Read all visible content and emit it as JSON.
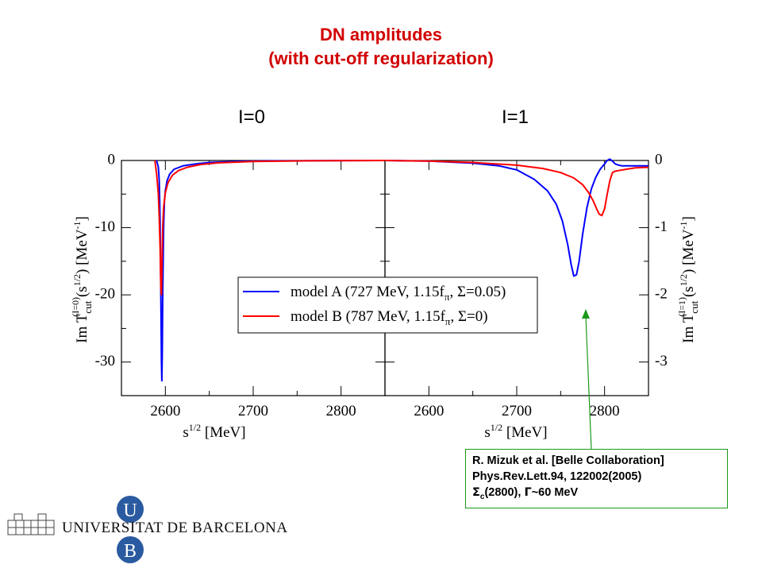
{
  "page": {
    "title_line1": "DN amplitudes",
    "title_line2": "(with cut-off regularization)",
    "label_left": "I=0",
    "label_right": "I=1"
  },
  "chart_data": [
    {
      "type": "line",
      "panel": "left",
      "xlabel": "s^1/2 [MeV]",
      "ylabel": "Im T_cut^(I=0)(s^1/2) [MeV^-1]",
      "xlim": [
        2550,
        2850
      ],
      "ylim": [
        -35,
        0
      ],
      "x_ticks": [
        2600,
        2700,
        2800
      ],
      "y_ticks": [
        0,
        -10,
        -20,
        -30
      ],
      "y_tick_labels": [
        "0",
        "-10",
        "-20",
        "-30"
      ],
      "series": [
        {
          "name": "model A (727 MeV, 1.15f_π, Σ=0.05)",
          "color": "#0000ff",
          "x": [
            2590,
            2592,
            2593,
            2594,
            2595,
            2595.5,
            2596,
            2596.5,
            2597,
            2598,
            2599,
            2600,
            2602,
            2605,
            2610,
            2620,
            2635,
            2650,
            2680,
            2720,
            2780,
            2850
          ],
          "y": [
            0,
            -1.0,
            -3.0,
            -9.0,
            -22.0,
            -30.0,
            -32.8,
            -28.0,
            -20.0,
            -10.0,
            -6.0,
            -4.5,
            -3.0,
            -2.0,
            -1.3,
            -0.8,
            -0.5,
            -0.3,
            -0.15,
            -0.06,
            -0.02,
            0
          ]
        },
        {
          "name": "model B (787 MeV, 1.15f_π, Σ=0)",
          "color": "#ff0000",
          "x": [
            2588,
            2590,
            2592,
            2593,
            2594,
            2594.8,
            2595.5,
            2596.2,
            2597,
            2598,
            2600,
            2603,
            2608,
            2615,
            2625,
            2640,
            2660,
            2700,
            2760,
            2850
          ],
          "y": [
            0,
            -2.0,
            -5.0,
            -8.5,
            -13.0,
            -19.0,
            -20.0,
            -15.0,
            -10.0,
            -7.0,
            -4.8,
            -3.3,
            -2.2,
            -1.5,
            -1.0,
            -0.6,
            -0.35,
            -0.15,
            -0.05,
            0
          ]
        }
      ]
    },
    {
      "type": "line",
      "panel": "right",
      "xlabel": "s^1/2 [MeV]",
      "ylabel": "Im T_cut^(I=1)(s^1/2) [MeV^-1]",
      "xlim": [
        2550,
        2850
      ],
      "ylim": [
        -3.5,
        0
      ],
      "x_ticks": [
        2600,
        2700,
        2800
      ],
      "y_ticks": [
        0,
        -1,
        -2,
        -3
      ],
      "y_tick_labels": [
        "0",
        "-1",
        "-2",
        "-3"
      ],
      "series": [
        {
          "name": "model A (727 MeV, 1.15f_π, Σ=0.05)",
          "color": "#0000ff",
          "x": [
            2550,
            2600,
            2650,
            2680,
            2700,
            2720,
            2735,
            2745,
            2752,
            2758,
            2762,
            2765,
            2768,
            2771,
            2775,
            2780,
            2785,
            2790,
            2795,
            2800,
            2803,
            2806,
            2809,
            2812,
            2816,
            2820,
            2835,
            2850
          ],
          "y": [
            0,
            -0.01,
            -0.04,
            -0.08,
            -0.14,
            -0.28,
            -0.45,
            -0.65,
            -0.9,
            -1.25,
            -1.55,
            -1.72,
            -1.7,
            -1.5,
            -1.1,
            -0.7,
            -0.42,
            -0.25,
            -0.13,
            -0.05,
            0.0,
            0.02,
            -0.01,
            -0.05,
            -0.07,
            -0.08,
            -0.08,
            -0.08
          ]
        },
        {
          "name": "model B (787 MeV, 1.15f_π, Σ=0)",
          "color": "#ff0000",
          "x": [
            2550,
            2600,
            2650,
            2700,
            2730,
            2750,
            2765,
            2775,
            2782,
            2787,
            2791,
            2794,
            2797,
            2800,
            2803,
            2806,
            2809,
            2812,
            2816,
            2825,
            2835,
            2850
          ],
          "y": [
            0,
            -0.01,
            -0.03,
            -0.07,
            -0.12,
            -0.18,
            -0.26,
            -0.36,
            -0.48,
            -0.6,
            -0.72,
            -0.8,
            -0.82,
            -0.72,
            -0.5,
            -0.3,
            -0.18,
            -0.16,
            -0.15,
            -0.13,
            -0.11,
            -0.1
          ]
        }
      ]
    }
  ],
  "legend": [
    {
      "text": "model A (727 MeV, 1.15f",
      "sub": "π",
      "tail": ", Σ=0.05)",
      "color": "#0000ff"
    },
    {
      "text": "model B (787 MeV, 1.15f",
      "sub": "π",
      "tail": ", Σ=0)",
      "color": "#ff0000"
    }
  ],
  "reference": {
    "line1": "R. Mizuk et al. [Belle Collaboration]",
    "line2": "Phys.Rev.Lett.94, 122002(2005)",
    "line3_sigma": "Σ",
    "line3_sub": "c",
    "line3_rest": "(2800), ",
    "line3_gamma": "Γ",
    "line3_tail": "~60 MeV"
  },
  "arrow_color": "#1a9a1a",
  "logo": {
    "text": "UNIVERSITAT DE BARCELONA",
    "letter_top": "U",
    "letter_bottom": "B",
    "color": "#2a5aa0"
  }
}
